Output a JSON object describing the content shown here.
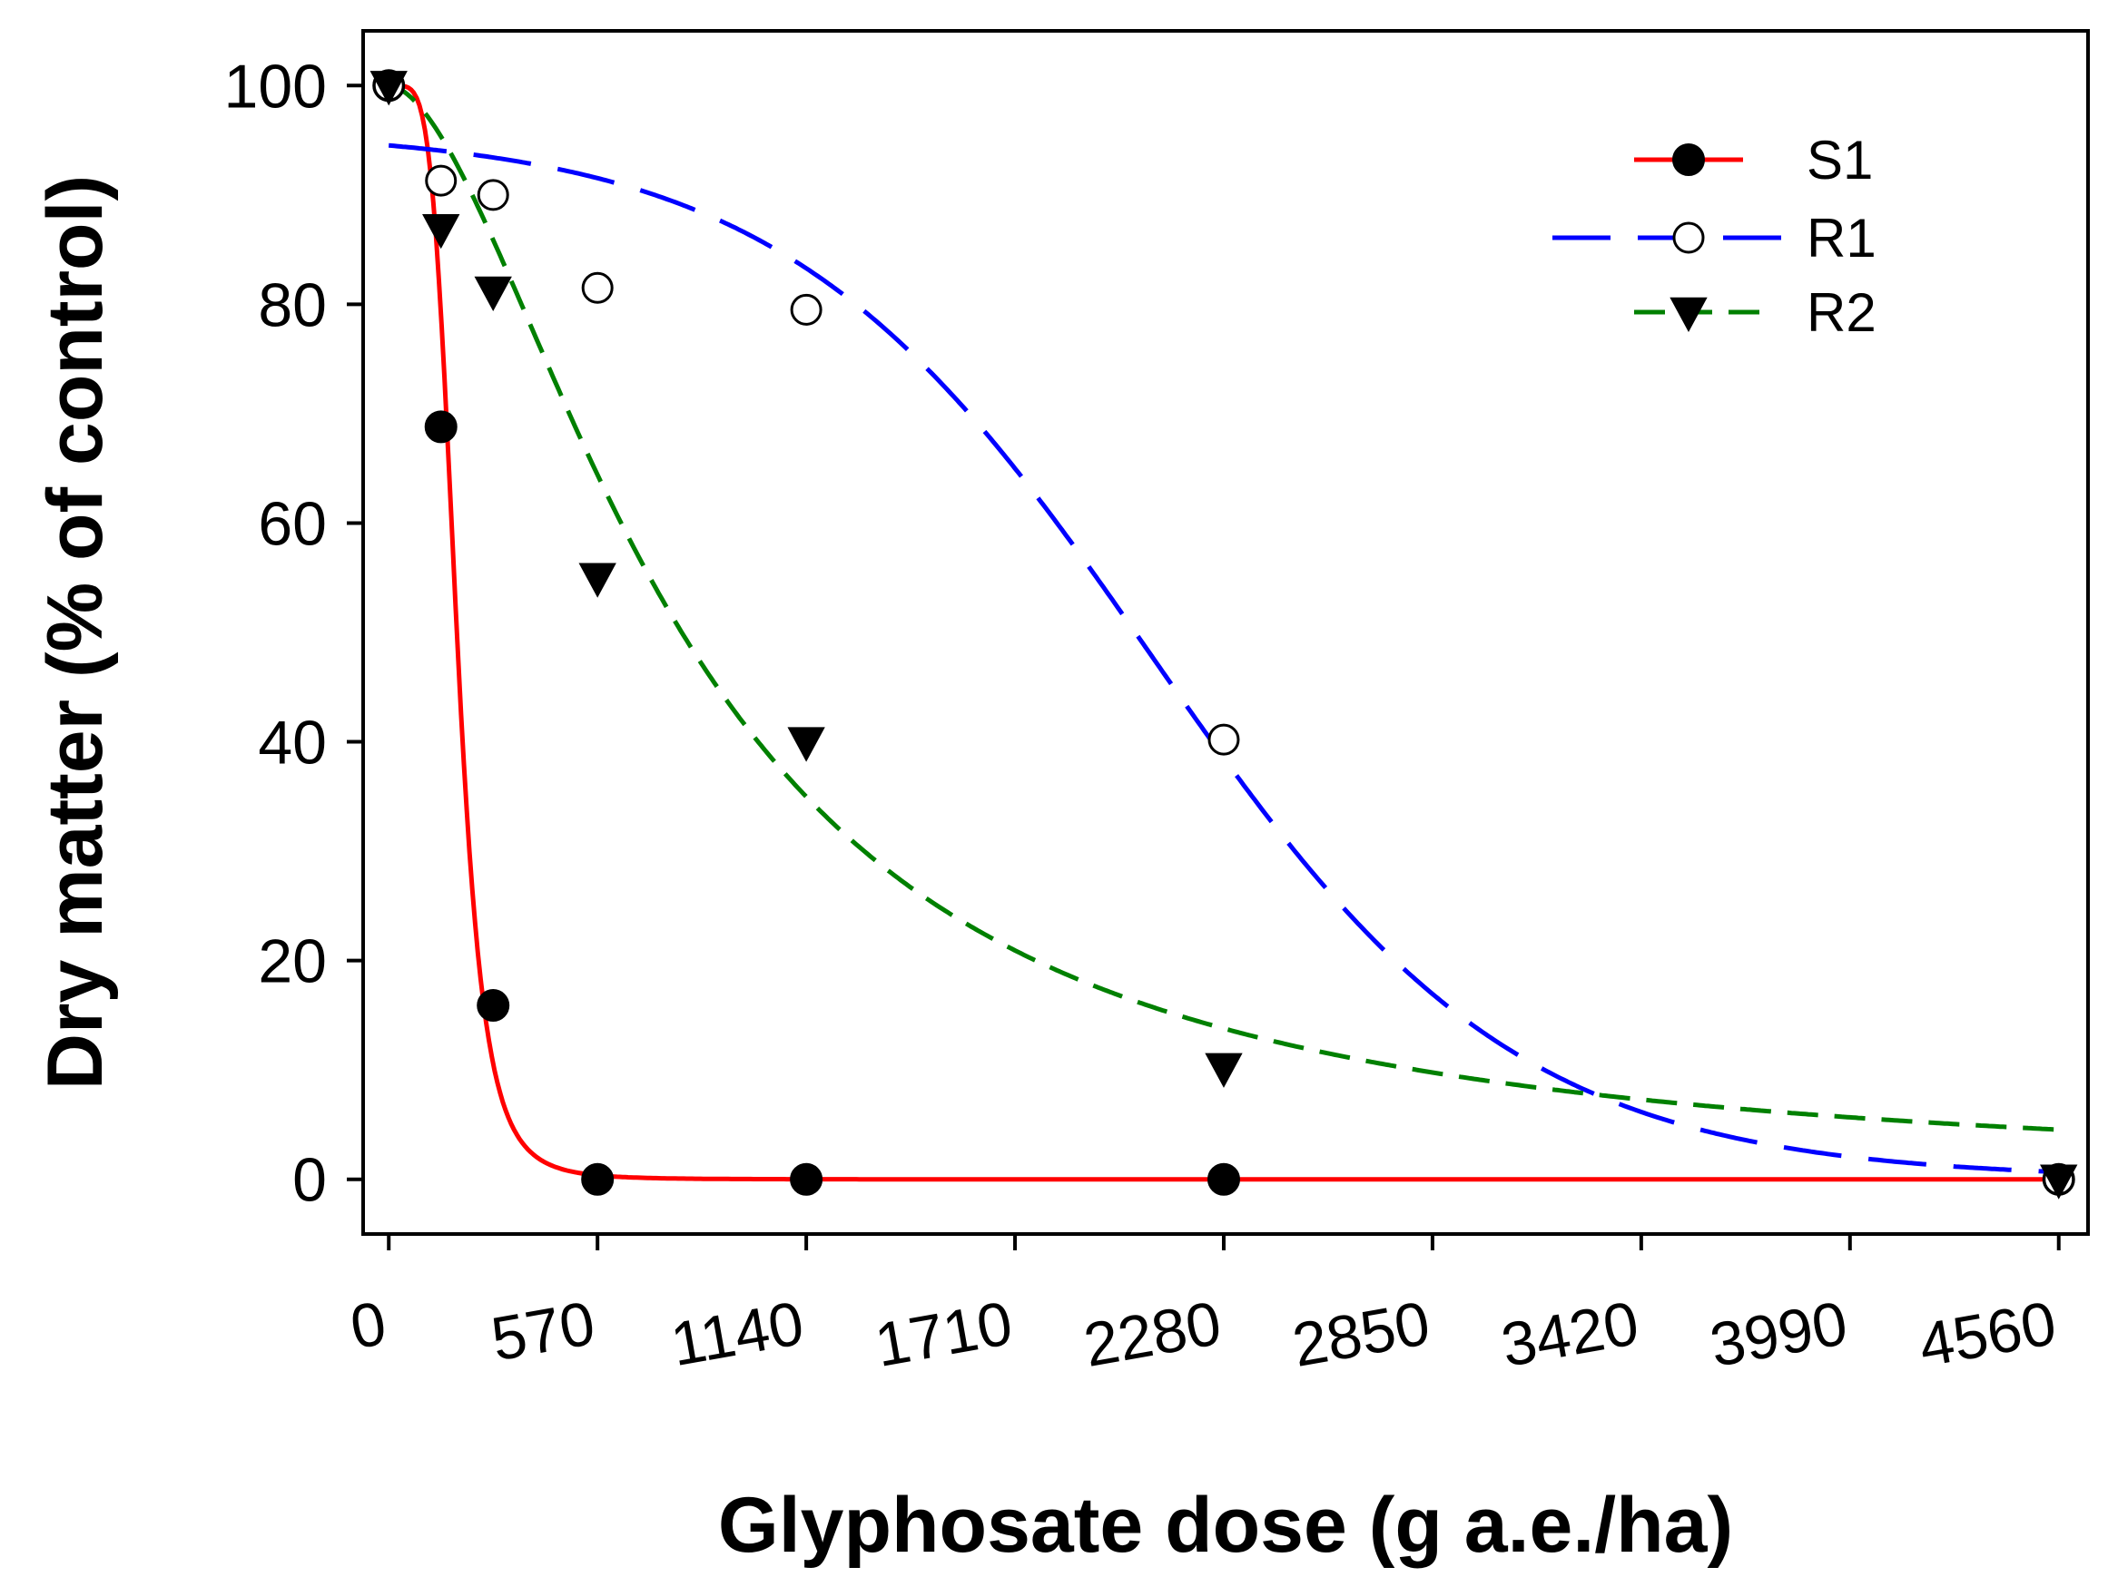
{
  "chart_data": {
    "type": "scatter",
    "xlabel": "Glyphosate dose (g a.e./ha)",
    "ylabel": "Dry matter (% of control)",
    "xlim": [
      -70,
      4640
    ],
    "ylim": [
      -5,
      105
    ],
    "x_ticks": [
      0,
      570,
      1140,
      1710,
      2280,
      2850,
      3420,
      3990,
      4560
    ],
    "x_tick_labels": [
      "0",
      "570",
      "1140",
      "1710",
      "2280",
      "2850",
      "3420",
      "3990",
      "4560"
    ],
    "y_ticks": [
      0,
      20,
      40,
      60,
      80,
      100
    ],
    "y_tick_labels": [
      "0",
      "20",
      "40",
      "60",
      "80",
      "100"
    ],
    "grid": false,
    "legend_position": "top-right",
    "series": [
      {
        "name": "S1",
        "color": "#ff0000",
        "marker": "filled-circle",
        "line_style": "solid",
        "points": [
          [
            0,
            100
          ],
          [
            142.5,
            68.8
          ],
          [
            285,
            15.9
          ],
          [
            570,
            0
          ],
          [
            1140,
            0
          ],
          [
            2280,
            0
          ],
          [
            4560,
            0
          ]
        ],
        "fit": {
          "model": "log-logistic",
          "top": 100,
          "ed50": 186,
          "slope": 5.0
        }
      },
      {
        "name": "R1",
        "color": "#0000ff",
        "marker": "open-circle",
        "line_style": "long-dash",
        "points": [
          [
            0,
            100
          ],
          [
            142.5,
            91.3
          ],
          [
            285,
            90
          ],
          [
            570,
            81.5
          ],
          [
            1140,
            79.5
          ],
          [
            2280,
            40.2
          ],
          [
            4560,
            0
          ]
        ],
        "fit": {
          "model": "logistic",
          "top": 96,
          "ed50": 2080,
          "scale": 500
        }
      },
      {
        "name": "R2",
        "color": "#008000",
        "marker": "filled-triangle-down",
        "line_style": "dash",
        "points": [
          [
            0,
            100
          ],
          [
            142.5,
            86.9
          ],
          [
            285,
            81.2
          ],
          [
            570,
            55
          ],
          [
            1140,
            40
          ],
          [
            2280,
            10.2
          ],
          [
            4560,
            0
          ]
        ],
        "fit": {
          "model": "log-logistic",
          "top": 100,
          "ed50": 800,
          "slope": 1.75
        }
      }
    ]
  }
}
